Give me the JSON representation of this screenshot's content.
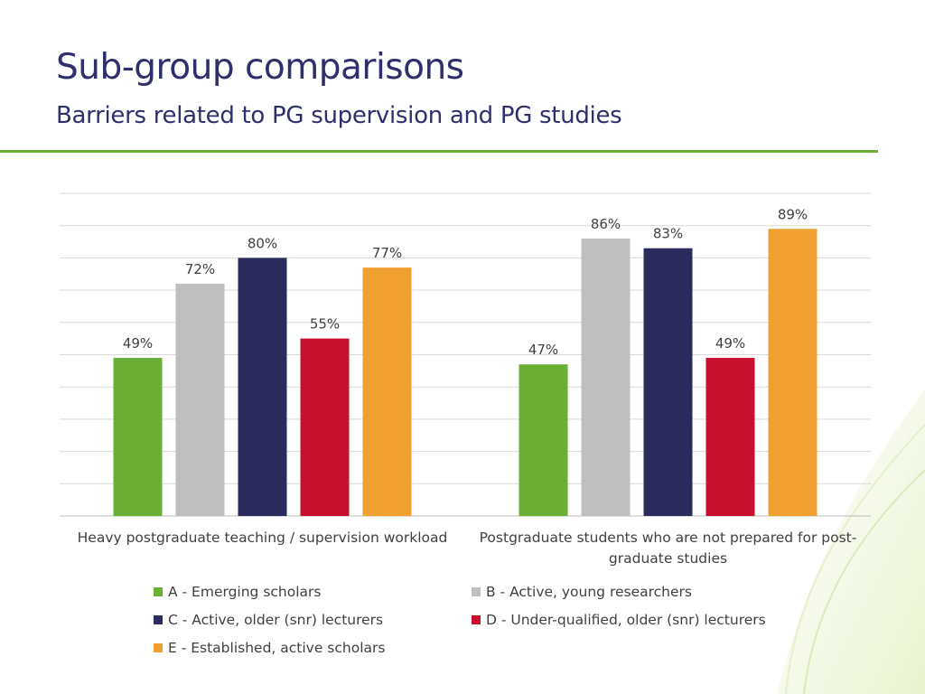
{
  "slide": {
    "title": "Sub-group comparisons",
    "subtitle": "Barriers related to PG supervision and PG studies"
  },
  "colors": {
    "title": "#2f2f6b",
    "rule": "#6aae36",
    "gridline": "#d9d9d9",
    "text": "#404040"
  },
  "chart_data": {
    "type": "bar",
    "categories": [
      "Heavy postgraduate teaching / supervision workload",
      "Postgraduate students who are not prepared for post-graduate studies"
    ],
    "category_lines": [
      [
        "Heavy postgraduate teaching / supervision workload"
      ],
      [
        "Postgraduate students who are not prepared for post-",
        "graduate studies"
      ]
    ],
    "series": [
      {
        "name": "A - Emerging scholars",
        "color": "#6aae36",
        "values": [
          49,
          47
        ],
        "labels": [
          "49%",
          "47%"
        ]
      },
      {
        "name": "B - Active, young researchers",
        "color": "#bfbfbf",
        "values": [
          72,
          86
        ],
        "labels": [
          "72%",
          "86%"
        ]
      },
      {
        "name": "C - Active, older (snr) lecturers",
        "color": "#2b2b5e",
        "values": [
          80,
          83
        ],
        "labels": [
          "80%",
          "83%"
        ]
      },
      {
        "name": "D - Under-qualified, older (snr) lecturers",
        "color": "#c8102e",
        "values": [
          55,
          49
        ],
        "labels": [
          "55%",
          "49%"
        ]
      },
      {
        "name": "E - Established, active scholars",
        "color": "#f0a030",
        "values": [
          77,
          89
        ],
        "labels": [
          "77%",
          "89%"
        ]
      }
    ],
    "ylim": [
      0,
      100
    ],
    "grid": true,
    "legend_position": "bottom",
    "xlabel": "",
    "ylabel": ""
  }
}
